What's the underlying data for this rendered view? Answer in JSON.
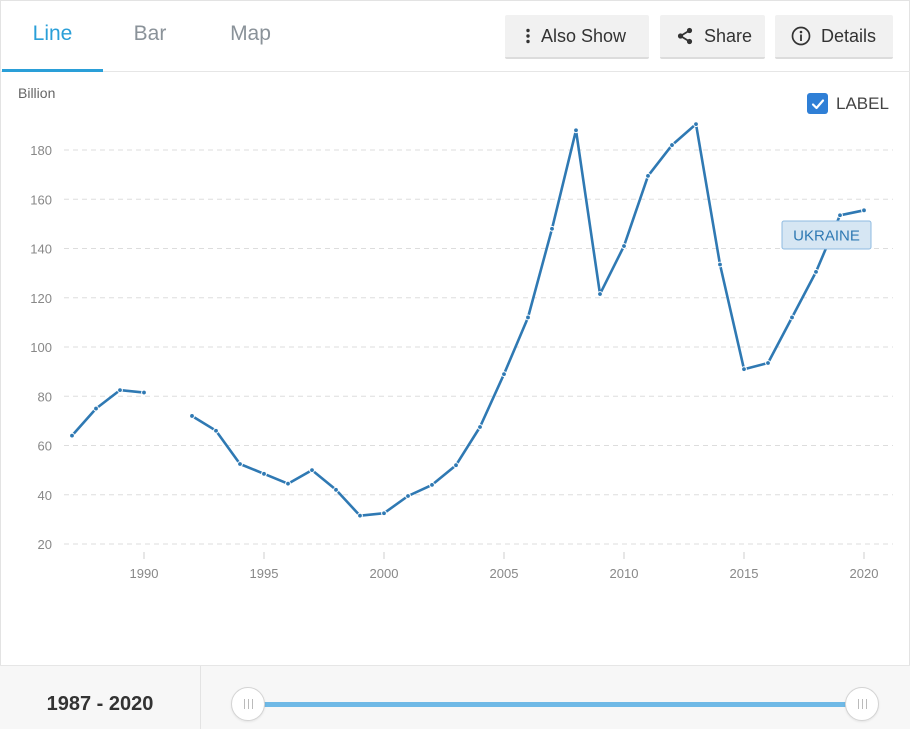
{
  "tabs": [
    {
      "label": "Line",
      "active": true
    },
    {
      "label": "Bar",
      "active": false
    },
    {
      "label": "Map",
      "active": false
    }
  ],
  "toolbar": {
    "also_show": "Also Show",
    "share": "Share",
    "details": "Details"
  },
  "label_toggle": {
    "text": "LABEL",
    "checked": true
  },
  "colors": {
    "line": "#2f79b3",
    "accent": "#2a9fd8",
    "checkbox": "#2f7fd6"
  },
  "chart_data": {
    "type": "line",
    "ylabel": "Billion",
    "ylim": [
      20,
      190
    ],
    "xlim": [
      1987,
      2020
    ],
    "y_ticks": [
      20,
      40,
      60,
      80,
      100,
      120,
      140,
      160,
      180
    ],
    "x_ticks": [
      1990,
      1995,
      2000,
      2005,
      2010,
      2015,
      2020
    ],
    "grid": true,
    "series": [
      {
        "name": "UKRAINE",
        "points": [
          [
            1987,
            64
          ],
          [
            1988,
            75
          ],
          [
            1989,
            82.5
          ],
          [
            1990,
            81.5
          ],
          [
            1992,
            72
          ],
          [
            1993,
            66
          ],
          [
            1994,
            52.5
          ],
          [
            1995,
            48.5
          ],
          [
            1996,
            44.5
          ],
          [
            1997,
            50
          ],
          [
            1998,
            42
          ],
          [
            1999,
            31.5
          ],
          [
            2000,
            32.5
          ],
          [
            2001,
            39.5
          ],
          [
            2002,
            44
          ],
          [
            2003,
            52
          ],
          [
            2004,
            67.5
          ],
          [
            2005,
            89
          ],
          [
            2006,
            112
          ],
          [
            2007,
            148
          ],
          [
            2008,
            188
          ],
          [
            2009,
            121.5
          ],
          [
            2010,
            141
          ],
          [
            2011,
            169.5
          ],
          [
            2012,
            182
          ],
          [
            2013,
            190.5
          ],
          [
            2014,
            133.5
          ],
          [
            2015,
            91
          ],
          [
            2016,
            93.5
          ],
          [
            2017,
            112
          ],
          [
            2018,
            130.5
          ],
          [
            2019,
            153.5
          ],
          [
            2020,
            155.5
          ]
        ]
      }
    ]
  },
  "range": {
    "text": "1987 - 2020"
  }
}
